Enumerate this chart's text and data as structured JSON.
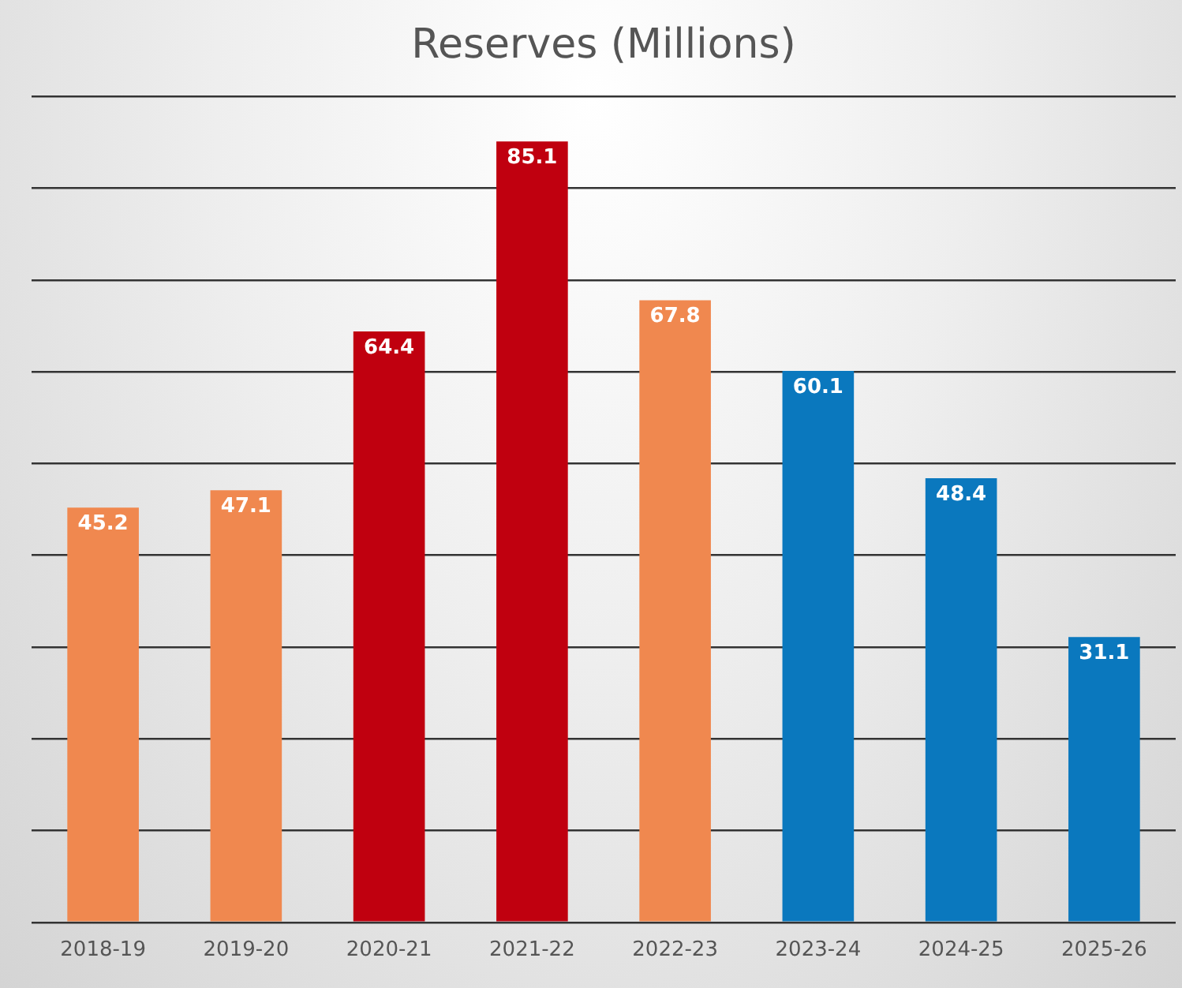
{
  "chart_data": {
    "type": "bar",
    "title": "Reserves (Millions)",
    "categories": [
      "2018-19",
      "2019-20",
      "2020-21",
      "2021-22",
      "2022-23",
      "2023-24",
      "2024-25",
      "2025-26"
    ],
    "values": [
      45.2,
      47.1,
      64.4,
      85.1,
      67.8,
      60.1,
      48.4,
      31.1
    ],
    "colors": [
      "#f0884f",
      "#f0884f",
      "#c0000f",
      "#c0000f",
      "#f0884f",
      "#0a78be",
      "#0a78be",
      "#0a78be"
    ],
    "ylim": [
      0,
      90
    ],
    "yticks": [
      {
        "value": 0,
        "label": null
      },
      {
        "value": 10,
        "label": null
      },
      {
        "value": 20,
        "label": null
      },
      {
        "value": 30,
        "label": null
      },
      {
        "value": 40,
        "label": null
      },
      {
        "value": 50,
        "label": null
      },
      {
        "value": 60,
        "label": null
      },
      {
        "value": 70,
        "label": null
      },
      {
        "value": 80,
        "label": null
      },
      {
        "value": 90,
        "label": null
      }
    ],
    "grid": "y",
    "legend": false,
    "tick_labels": "x",
    "data_labels": true
  }
}
